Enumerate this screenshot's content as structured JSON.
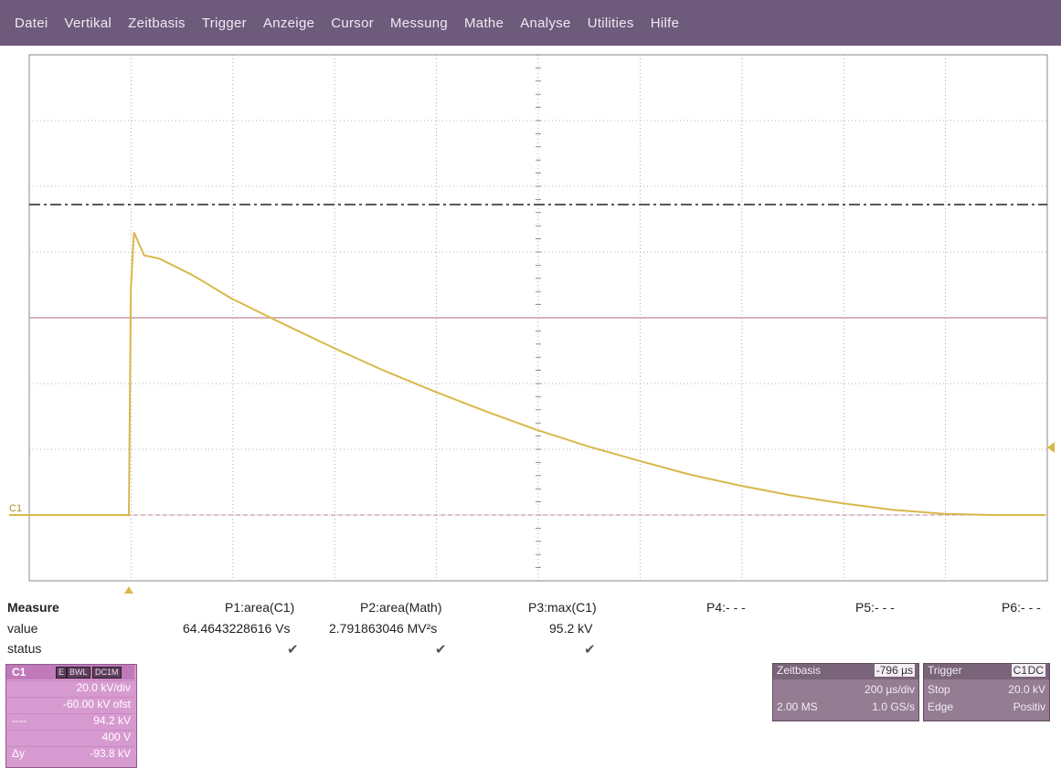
{
  "menu": [
    "Datei",
    "Vertikal",
    "Zeitbasis",
    "Trigger",
    "Anzeige",
    "Cursor",
    "Messung",
    "Mathe",
    "Analyse",
    "Utilities",
    "Hilfe"
  ],
  "waveform": {
    "channel_marker": "C1",
    "color": "#d9b84a",
    "reference_color": "#c99aa6",
    "divisions_x": 10,
    "divisions_y": 8,
    "trace": [
      [
        0.0,
        0.0
      ],
      [
        0.2,
        0.0
      ],
      [
        0.05,
        4.0
      ],
      [
        0.2,
        4.3
      ],
      [
        0.3,
        4.0
      ],
      [
        0.5,
        3.86
      ],
      [
        0.6,
        3.67
      ],
      [
        0.7,
        3.58
      ],
      [
        1.0,
        3.3
      ],
      [
        1.5,
        2.92
      ],
      [
        2.0,
        2.55
      ],
      [
        2.5,
        2.2
      ],
      [
        3.0,
        1.88
      ],
      [
        3.5,
        1.58
      ],
      [
        4.0,
        1.3
      ],
      [
        4.5,
        1.05
      ],
      [
        5.0,
        0.83
      ],
      [
        5.5,
        0.62
      ],
      [
        6.0,
        0.45
      ],
      [
        6.5,
        0.3
      ],
      [
        7.0,
        0.18
      ],
      [
        7.5,
        0.08
      ],
      [
        8.0,
        0.02
      ],
      [
        8.5,
        0.0
      ],
      [
        9.0,
        0.0
      ]
    ]
  },
  "measure": {
    "header": "Measure",
    "row_value": "value",
    "row_status": "status",
    "p1": {
      "name": "P1:area(C1)",
      "value": "64.4643228616 Vs",
      "status": "✔"
    },
    "p2": {
      "name": "P2:area(Math)",
      "value": "2.791863046 MV²s",
      "status": "✔"
    },
    "p3": {
      "name": "P3:max(C1)",
      "value": "95.2 kV",
      "status": "✔"
    },
    "p4": {
      "name": "P4:- - -"
    },
    "p5": {
      "name": "P5:- - -"
    },
    "p6": {
      "name": "P6:- - -"
    }
  },
  "c1_box": {
    "name": "C1",
    "tag1": "BWL",
    "tag2": "DC1M",
    "tag0": "E",
    "scale": "20.0 kV/div",
    "offset": "-60.00 kV ofst",
    "row3_label": "----",
    "row3_value": "94.2 kV",
    "row4_value": "400 V",
    "row5_label": "Δy",
    "row5_value": "-93.8 kV"
  },
  "timebase": {
    "title": "Zeitbasis",
    "delay": "-796 µs",
    "timediv": "200 µs/div",
    "samples": "2.00 MS",
    "rate": "1.0 GS/s"
  },
  "trigger": {
    "title": "Trigger",
    "source_tag": "C1",
    "coupling_tag": "DC",
    "mode": "Stop",
    "level": "20.0 kV",
    "type": "Edge",
    "slope": "Positiv"
  }
}
